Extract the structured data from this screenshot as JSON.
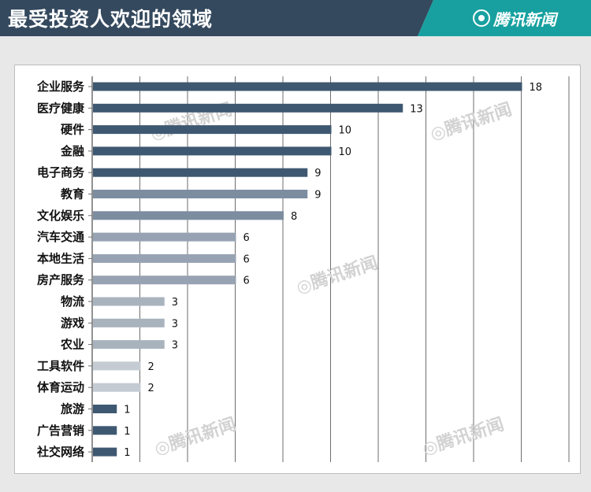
{
  "header": {
    "title": "最受投资人欢迎的领域",
    "brand": "腾讯新闻",
    "colors": {
      "title_bg": "#34495e",
      "brand_bg": "#18a0a0"
    }
  },
  "watermark": "腾讯新闻",
  "chart_data": {
    "type": "bar",
    "orientation": "horizontal",
    "categories": [
      "企业服务",
      "医疗健康",
      "硬件",
      "金融",
      "电子商务",
      "教育",
      "文化娱乐",
      "汽车交通",
      "本地生活",
      "房产服务",
      "物流",
      "游戏",
      "农业",
      "工具软件",
      "体育运动",
      "旅游",
      "广告营销",
      "社交网络"
    ],
    "values": [
      18,
      13,
      10,
      10,
      9,
      9,
      8,
      6,
      6,
      6,
      3,
      3,
      3,
      2,
      2,
      1,
      1,
      1
    ],
    "value_labels": [
      "18",
      "13",
      "10",
      "10",
      "9",
      "9",
      "8",
      "6",
      "6",
      "6",
      "3",
      "3",
      "3",
      "2",
      "2",
      "1",
      "1",
      "1"
    ],
    "bar_colors": [
      "#3f5871",
      "#3f5871",
      "#3f5871",
      "#3f5871",
      "#3f5871",
      "#7d8da0",
      "#7d8da0",
      "#97a3b2",
      "#97a3b2",
      "#97a3b2",
      "#a9b3be",
      "#a9b3be",
      "#a9b3be",
      "#c4cbd3",
      "#c4cbd3",
      "#3f5871",
      "#3f5871",
      "#3f5871"
    ],
    "xlim": [
      0,
      20
    ],
    "grid": true
  }
}
